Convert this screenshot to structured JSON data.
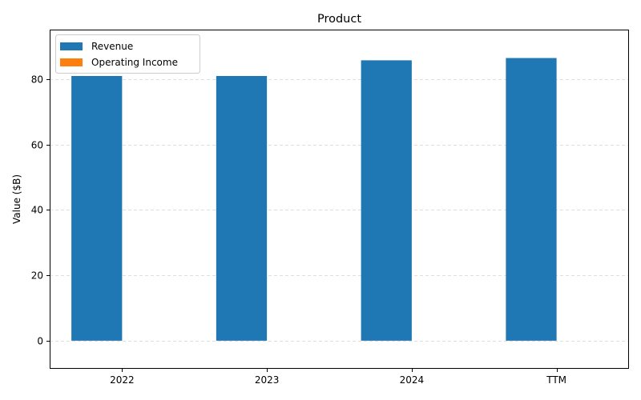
{
  "chart_data": {
    "type": "bar",
    "title": "Product",
    "xlabel": "",
    "ylabel": "Value ($B)",
    "categories": [
      "2022",
      "2023",
      "2024",
      "TTM"
    ],
    "series": [
      {
        "name": "Revenue",
        "values": [
          81.0,
          81.0,
          85.8,
          86.5
        ],
        "color": "#1f77b4"
      },
      {
        "name": "Operating Income",
        "values": [
          0,
          0,
          0,
          0
        ],
        "color": "#ff7f0e"
      }
    ],
    "ylim": [
      -8.6,
      95.2
    ],
    "yticks": [
      0,
      20,
      40,
      60,
      80
    ],
    "grid": {
      "y": true,
      "style": "dashed",
      "color": "#d3d3d3"
    },
    "legend": {
      "position": "top-left"
    }
  }
}
